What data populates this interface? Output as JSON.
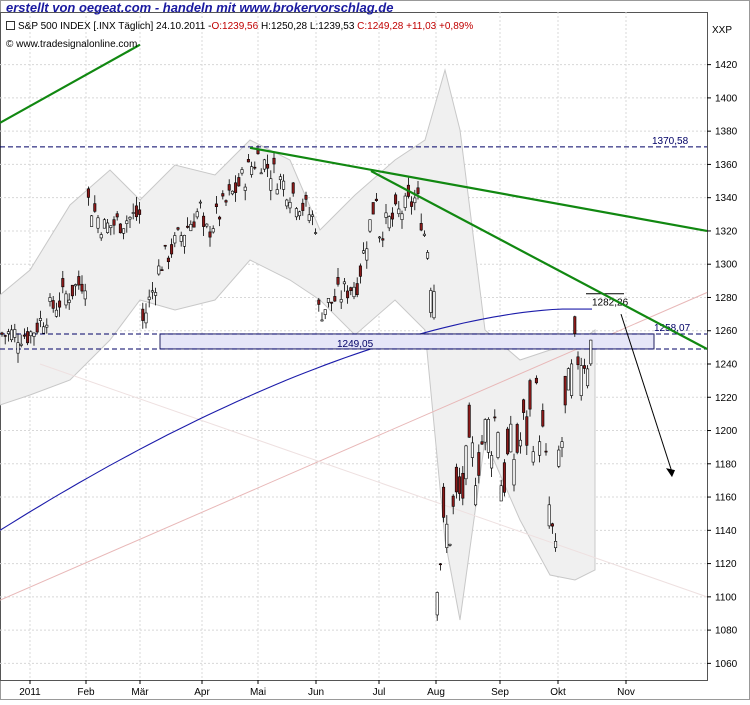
{
  "header": {
    "banner": "erstellt von oegeat.com - handeln mit www.brokervorschlag.de",
    "instrument": "S&P 500 INDEX [.INX Täglich]",
    "date": "24.10.2011",
    "open": "O:1239,56",
    "high": "H:1250,28",
    "low": "L:1239,53",
    "close": "C:1249,28",
    "change": "+11,03",
    "change_pct": "+0,89%",
    "watermark": "© www.tradesignalonline.com",
    "axis_symbol": "XXP"
  },
  "colors": {
    "candle_up": "#ffffff",
    "candle_down": "#8b1a1a",
    "candle_outline": "#000000",
    "trend_green": "#118811",
    "ma_blue": "#1c1caa",
    "level_dash": "#000066",
    "zone_fill": "#e6e6f8",
    "band_fill": "#f0f0f0",
    "band_line": "#c8c8c8",
    "faint_red": "#e8b8b8"
  },
  "chart_data": {
    "type": "candlestick",
    "ylim": [
      1050,
      1430
    ],
    "y_ticks": [
      1060,
      1080,
      1100,
      1120,
      1140,
      1160,
      1180,
      1200,
      1220,
      1240,
      1260,
      1280,
      1300,
      1320,
      1340,
      1360,
      1380,
      1400,
      1420
    ],
    "x_labels": [
      "2011",
      "Feb",
      "Mär",
      "Apr",
      "Mai",
      "Jun",
      "Jul",
      "Aug",
      "Sep",
      "Okt",
      "Nov"
    ],
    "horizontal_levels": [
      {
        "label": "1370,58",
        "value": 1370.58
      },
      {
        "label": "1258,07",
        "value": 1258.07
      },
      {
        "label": "1249,05",
        "value": 1249.05
      }
    ],
    "resistance_label": {
      "label": "1282,26",
      "value": 1282.26
    },
    "trend_lines": [
      {
        "from": [
          "2011",
          1385
        ],
        "to": [
          "Feb",
          1432
        ]
      },
      {
        "from": [
          "Mai",
          1370
        ],
        "to": [
          "Nov",
          1320
        ]
      },
      {
        "from": [
          "Jul",
          1356
        ],
        "to": [
          "Nov",
          1249
        ]
      }
    ],
    "moving_average": {
      "start": 1140,
      "end": 1273
    },
    "close_path": [
      {
        "x": "2011",
        "v": 1258
      },
      {
        "x": "2011",
        "v": 1272
      },
      {
        "x": "Feb",
        "v": 1292
      },
      {
        "x": "Feb",
        "v": 1340
      },
      {
        "x": "Feb",
        "v": 1322
      },
      {
        "x": "Mär",
        "v": 1330
      },
      {
        "x": "Mär",
        "v": 1260
      },
      {
        "x": "Mär",
        "v": 1300
      },
      {
        "x": "Apr",
        "v": 1335
      },
      {
        "x": "Apr",
        "v": 1315
      },
      {
        "x": "Mai",
        "v": 1365
      },
      {
        "x": "Mai",
        "v": 1340
      },
      {
        "x": "Jun",
        "v": 1325
      },
      {
        "x": "Jun",
        "v": 1270
      },
      {
        "x": "Jun",
        "v": 1290
      },
      {
        "x": "Jul",
        "v": 1350
      },
      {
        "x": "Jul",
        "v": 1320
      },
      {
        "x": "Jul",
        "v": 1340
      },
      {
        "x": "Aug",
        "v": 1285
      },
      {
        "x": "Aug",
        "v": 1120
      },
      {
        "x": "Aug",
        "v": 1190
      },
      {
        "x": "Sep",
        "v": 1210
      },
      {
        "x": "Sep",
        "v": 1170
      },
      {
        "x": "Sep",
        "v": 1215
      },
      {
        "x": "Okt",
        "v": 1100
      },
      {
        "x": "Okt",
        "v": 1180
      },
      {
        "x": "Okt",
        "v": 1249
      }
    ]
  }
}
